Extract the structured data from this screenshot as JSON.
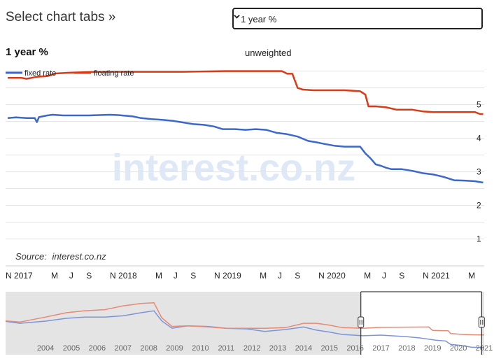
{
  "header": {
    "title": "Select chart tabs »",
    "tab_select_value": "1 year %"
  },
  "chart_data": {
    "type": "line",
    "title": "1 year %",
    "subtitle": "unweighted",
    "source_label": "Source:",
    "source_link": "interest.co.nz",
    "watermark": "interest.co.nz",
    "y_ticks": [
      1,
      2,
      3,
      4,
      5
    ],
    "ylim": [
      0.7,
      6.2
    ],
    "x_ticks": [
      {
        "label": "N 2017",
        "x": 2016.83
      },
      {
        "label": "M",
        "x": 2017.17
      },
      {
        "label": "J",
        "x": 2017.33
      },
      {
        "label": "S",
        "x": 2017.5
      },
      {
        "label": "N 2018",
        "x": 2017.83
      },
      {
        "label": "M",
        "x": 2018.17
      },
      {
        "label": "J",
        "x": 2018.33
      },
      {
        "label": "S",
        "x": 2018.5
      },
      {
        "label": "N 2019",
        "x": 2018.83
      },
      {
        "label": "M",
        "x": 2019.17
      },
      {
        "label": "J",
        "x": 2019.33
      },
      {
        "label": "S",
        "x": 2019.5
      },
      {
        "label": "N 2020",
        "x": 2019.83
      },
      {
        "label": "M",
        "x": 2020.17
      },
      {
        "label": "J",
        "x": 2020.33
      },
      {
        "label": "S",
        "x": 2020.5
      },
      {
        "label": "N 2021",
        "x": 2020.83
      },
      {
        "label": "M",
        "x": 2021.17
      }
    ],
    "xlim": [
      2016.7,
      2021.29
    ],
    "series": [
      {
        "name": "fixed rate",
        "color": "#3c69c9",
        "points": [
          [
            2016.72,
            4.6
          ],
          [
            2016.8,
            4.62
          ],
          [
            2016.9,
            4.6
          ],
          [
            2016.98,
            4.6
          ],
          [
            2017.0,
            4.48
          ],
          [
            2017.02,
            4.63
          ],
          [
            2017.1,
            4.68
          ],
          [
            2017.15,
            4.7
          ],
          [
            2017.25,
            4.68
          ],
          [
            2017.5,
            4.68
          ],
          [
            2017.7,
            4.7
          ],
          [
            2017.78,
            4.69
          ],
          [
            2017.92,
            4.65
          ],
          [
            2018.0,
            4.6
          ],
          [
            2018.1,
            4.57
          ],
          [
            2018.2,
            4.55
          ],
          [
            2018.3,
            4.52
          ],
          [
            2018.4,
            4.47
          ],
          [
            2018.5,
            4.42
          ],
          [
            2018.6,
            4.4
          ],
          [
            2018.7,
            4.35
          ],
          [
            2018.78,
            4.27
          ],
          [
            2018.9,
            4.27
          ],
          [
            2019.0,
            4.25
          ],
          [
            2019.1,
            4.27
          ],
          [
            2019.2,
            4.25
          ],
          [
            2019.3,
            4.16
          ],
          [
            2019.4,
            4.12
          ],
          [
            2019.5,
            4.05
          ],
          [
            2019.6,
            3.92
          ],
          [
            2019.68,
            3.88
          ],
          [
            2019.76,
            3.83
          ],
          [
            2019.85,
            3.78
          ],
          [
            2019.95,
            3.75
          ],
          [
            2020.05,
            3.75
          ],
          [
            2020.1,
            3.75
          ],
          [
            2020.15,
            3.55
          ],
          [
            2020.2,
            3.4
          ],
          [
            2020.25,
            3.22
          ],
          [
            2020.3,
            3.18
          ],
          [
            2020.35,
            3.12
          ],
          [
            2020.4,
            3.08
          ],
          [
            2020.5,
            3.08
          ],
          [
            2020.6,
            3.03
          ],
          [
            2020.7,
            2.96
          ],
          [
            2020.8,
            2.92
          ],
          [
            2020.9,
            2.85
          ],
          [
            2021.0,
            2.75
          ],
          [
            2021.1,
            2.74
          ],
          [
            2021.2,
            2.72
          ],
          [
            2021.28,
            2.68
          ]
        ]
      },
      {
        "name": "floating rate",
        "color": "#d83b17",
        "points": [
          [
            2016.72,
            5.8
          ],
          [
            2016.85,
            5.8
          ],
          [
            2016.9,
            5.77
          ],
          [
            2017.0,
            5.83
          ],
          [
            2017.1,
            5.85
          ],
          [
            2017.18,
            5.93
          ],
          [
            2017.3,
            5.95
          ],
          [
            2017.5,
            5.97
          ],
          [
            2017.7,
            5.98
          ],
          [
            2018.0,
            5.98
          ],
          [
            2018.4,
            5.98
          ],
          [
            2018.8,
            6.0
          ],
          [
            2019.0,
            6.0
          ],
          [
            2019.2,
            6.0
          ],
          [
            2019.35,
            6.0
          ],
          [
            2019.4,
            5.92
          ],
          [
            2019.45,
            5.92
          ],
          [
            2019.5,
            5.5
          ],
          [
            2019.55,
            5.45
          ],
          [
            2019.65,
            5.43
          ],
          [
            2019.8,
            5.43
          ],
          [
            2019.95,
            5.43
          ],
          [
            2020.1,
            5.4
          ],
          [
            2020.15,
            5.3
          ],
          [
            2020.18,
            4.95
          ],
          [
            2020.25,
            4.95
          ],
          [
            2020.35,
            4.92
          ],
          [
            2020.45,
            4.85
          ],
          [
            2020.6,
            4.85
          ],
          [
            2020.7,
            4.8
          ],
          [
            2020.8,
            4.78
          ],
          [
            2021.0,
            4.78
          ],
          [
            2021.2,
            4.78
          ],
          [
            2021.25,
            4.72
          ],
          [
            2021.28,
            4.72
          ]
        ]
      }
    ],
    "navigator": {
      "x_labels": [
        "2004",
        "2005",
        "2006",
        "2007",
        "2008",
        "2009",
        "2010",
        "2011",
        "2012",
        "2013",
        "2014",
        "2015",
        "2016",
        "2017",
        "2018",
        "2019",
        "2020",
        "2021"
      ],
      "xlim": [
        2002.95,
        2021.5
      ],
      "selected_range": [
        2016.72,
        2021.4
      ],
      "fixed_values": [
        [
          2002.95,
          6.9
        ],
        [
          2003.5,
          6.6
        ],
        [
          2004.5,
          6.95
        ],
        [
          2005.3,
          7.4
        ],
        [
          2006.0,
          7.6
        ],
        [
          2006.8,
          7.6
        ],
        [
          2007.5,
          7.8
        ],
        [
          2008.2,
          8.3
        ],
        [
          2008.7,
          8.6
        ],
        [
          2009.0,
          7.0
        ],
        [
          2009.4,
          5.8
        ],
        [
          2010.0,
          6.2
        ],
        [
          2010.8,
          6.1
        ],
        [
          2011.5,
          5.8
        ],
        [
          2012.3,
          5.7
        ],
        [
          2013.0,
          5.3
        ],
        [
          2013.8,
          5.6
        ],
        [
          2014.5,
          6.0
        ],
        [
          2015.0,
          5.5
        ],
        [
          2015.5,
          5.2
        ],
        [
          2016.0,
          4.8
        ],
        [
          2016.8,
          4.6
        ],
        [
          2017.5,
          4.7
        ],
        [
          2018.5,
          4.45
        ],
        [
          2019.0,
          4.25
        ],
        [
          2019.6,
          3.9
        ],
        [
          2020.0,
          3.75
        ],
        [
          2020.2,
          3.2
        ],
        [
          2020.6,
          3.05
        ],
        [
          2021.0,
          2.75
        ],
        [
          2021.3,
          2.7
        ],
        [
          2021.5,
          2.7
        ]
      ],
      "floating_values": [
        [
          2002.95,
          7.0
        ],
        [
          2003.5,
          6.8
        ],
        [
          2004.5,
          7.6
        ],
        [
          2005.3,
          8.3
        ],
        [
          2006.0,
          8.6
        ],
        [
          2006.8,
          8.8
        ],
        [
          2007.5,
          9.4
        ],
        [
          2008.2,
          9.8
        ],
        [
          2008.7,
          9.9
        ],
        [
          2009.0,
          7.5
        ],
        [
          2009.4,
          6.1
        ],
        [
          2010.0,
          6.2
        ],
        [
          2010.8,
          6.0
        ],
        [
          2011.5,
          5.8
        ],
        [
          2012.3,
          5.8
        ],
        [
          2013.0,
          5.8
        ],
        [
          2013.8,
          5.9
        ],
        [
          2014.5,
          6.6
        ],
        [
          2015.0,
          6.6
        ],
        [
          2015.5,
          6.3
        ],
        [
          2016.0,
          5.9
        ],
        [
          2016.8,
          5.8
        ],
        [
          2017.5,
          5.95
        ],
        [
          2018.5,
          5.98
        ],
        [
          2019.35,
          6.0
        ],
        [
          2019.5,
          5.45
        ],
        [
          2020.1,
          5.4
        ],
        [
          2020.2,
          4.95
        ],
        [
          2020.7,
          4.8
        ],
        [
          2021.2,
          4.75
        ],
        [
          2021.5,
          4.72
        ]
      ]
    },
    "grid": true,
    "legend_position": "top-left"
  }
}
